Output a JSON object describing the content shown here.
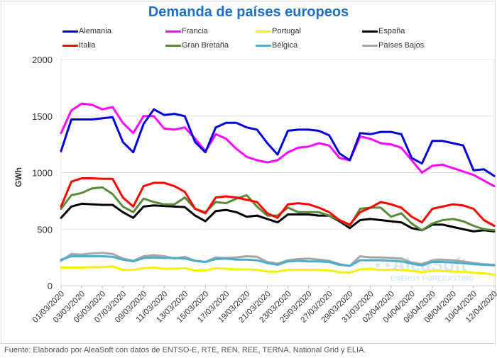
{
  "chart_data": {
    "type": "line",
    "title": "Demanda de países europeos",
    "xlabel": "",
    "ylabel": "GWh",
    "ylim": [
      0,
      2000
    ],
    "yticks": [
      "0",
      "500",
      "1000",
      "1500",
      "2000"
    ],
    "grid": true,
    "legend_position": "top",
    "x": [
      "01/03/2020",
      "02/03/2020",
      "03/03/2020",
      "04/03/2020",
      "05/03/2020",
      "06/03/2020",
      "07/03/2020",
      "08/03/2020",
      "09/03/2020",
      "10/03/2020",
      "11/03/2020",
      "12/03/2020",
      "13/03/2020",
      "14/03/2020",
      "15/03/2020",
      "16/03/2020",
      "17/03/2020",
      "18/03/2020",
      "19/03/2020",
      "20/03/2020",
      "21/03/2020",
      "22/03/2020",
      "23/03/2020",
      "24/03/2020",
      "25/03/2020",
      "26/03/2020",
      "27/03/2020",
      "28/03/2020",
      "29/03/2020",
      "30/03/2020",
      "31/03/2020",
      "01/04/2020",
      "02/04/2020",
      "03/04/2020",
      "04/04/2020",
      "05/04/2020",
      "06/04/2020",
      "07/04/2020",
      "08/04/2020",
      "09/04/2020",
      "10/04/2020",
      "11/04/2020",
      "12/04/2020"
    ],
    "xtick_labels": [
      "01/03/2020",
      "03/03/2020",
      "05/03/2020",
      "07/03/2020",
      "09/03/2020",
      "11/03/2020",
      "13/03/2020",
      "15/03/2020",
      "17/03/2020",
      "19/03/2020",
      "21/03/2020",
      "23/03/2020",
      "25/03/2020",
      "27/03/2020",
      "29/03/2020",
      "31/03/2020",
      "02/04/2020",
      "04/04/2020",
      "06/04/2020",
      "08/04/2020",
      "10/04/2020",
      "12/04/2020"
    ],
    "series": [
      {
        "name": "Alemania",
        "color": "#0000dd",
        "values": [
          1190,
          1470,
          1470,
          1470,
          1480,
          1490,
          1270,
          1180,
          1430,
          1560,
          1510,
          1520,
          1500,
          1270,
          1180,
          1400,
          1440,
          1440,
          1400,
          1380,
          1260,
          1160,
          1370,
          1380,
          1380,
          1370,
          1330,
          1170,
          1110,
          1350,
          1340,
          1360,
          1360,
          1340,
          1130,
          1080,
          1280,
          1280,
          1260,
          1240,
          1020,
          1030,
          970
        ]
      },
      {
        "name": "Francia",
        "color": "#ff00ff",
        "values": [
          1350,
          1550,
          1610,
          1600,
          1560,
          1580,
          1440,
          1350,
          1500,
          1500,
          1390,
          1380,
          1400,
          1300,
          1190,
          1340,
          1300,
          1210,
          1140,
          1110,
          1090,
          1110,
          1180,
          1220,
          1230,
          1260,
          1240,
          1130,
          1110,
          1320,
          1300,
          1260,
          1250,
          1220,
          1110,
          1000,
          1060,
          1070,
          1040,
          1010,
          980,
          930,
          880
        ]
      },
      {
        "name": "Portugal",
        "color": "#f2f200",
        "values": [
          160,
          160,
          160,
          165,
          165,
          170,
          140,
          140,
          155,
          160,
          150,
          150,
          155,
          135,
          135,
          155,
          150,
          145,
          145,
          140,
          125,
          125,
          140,
          140,
          140,
          140,
          135,
          120,
          115,
          145,
          150,
          140,
          140,
          140,
          130,
          120,
          130,
          130,
          125,
          125,
          115,
          110,
          95
        ]
      },
      {
        "name": "España",
        "color": "#000000",
        "values": [
          600,
          700,
          725,
          720,
          715,
          715,
          650,
          600,
          700,
          710,
          705,
          700,
          695,
          620,
          570,
          660,
          670,
          650,
          610,
          620,
          590,
          560,
          630,
          630,
          630,
          620,
          620,
          570,
          510,
          580,
          590,
          580,
          570,
          560,
          510,
          490,
          540,
          540,
          520,
          500,
          480,
          490,
          480
        ]
      },
      {
        "name": "Italia",
        "color": "#ff0000",
        "values": [
          700,
          920,
          950,
          950,
          945,
          945,
          780,
          700,
          880,
          910,
          910,
          880,
          830,
          680,
          640,
          780,
          790,
          780,
          760,
          740,
          640,
          600,
          720,
          730,
          720,
          690,
          650,
          580,
          540,
          650,
          690,
          740,
          720,
          690,
          610,
          560,
          680,
          700,
          720,
          710,
          680,
          580,
          530
        ]
      },
      {
        "name": "Gran Bretaña",
        "color": "#5a8a3a",
        "values": [
          680,
          800,
          820,
          860,
          870,
          810,
          700,
          650,
          770,
          740,
          720,
          720,
          780,
          680,
          650,
          740,
          730,
          770,
          800,
          700,
          620,
          620,
          690,
          650,
          650,
          650,
          620,
          580,
          530,
          680,
          690,
          690,
          610,
          640,
          550,
          490,
          550,
          580,
          590,
          570,
          530,
          500,
          490
        ]
      },
      {
        "name": "Bélgica",
        "color": "#4aaec8",
        "values": [
          230,
          260,
          260,
          260,
          260,
          255,
          230,
          215,
          245,
          250,
          245,
          245,
          240,
          220,
          210,
          235,
          240,
          230,
          230,
          225,
          200,
          185,
          215,
          220,
          215,
          215,
          210,
          185,
          175,
          225,
          225,
          225,
          220,
          215,
          195,
          180,
          210,
          210,
          205,
          200,
          190,
          185,
          180
        ]
      },
      {
        "name": "Países Bajos",
        "color": "#a6a6a6",
        "values": [
          220,
          280,
          275,
          285,
          290,
          280,
          240,
          220,
          260,
          270,
          260,
          240,
          255,
          220,
          210,
          250,
          245,
          250,
          260,
          255,
          210,
          195,
          225,
          235,
          240,
          230,
          220,
          190,
          175,
          260,
          250,
          250,
          245,
          240,
          205,
          190,
          225,
          230,
          225,
          215,
          200,
          190,
          185
        ]
      }
    ]
  },
  "watermark": {
    "brand": "AleaSoft",
    "tagline": "ENERGY FORECASTING"
  },
  "footer": "Fuente: Elaborado por AleaSoft con datos de ENTSO-E, RTE, REN, REE, TERNA, National Grid y ELIA."
}
